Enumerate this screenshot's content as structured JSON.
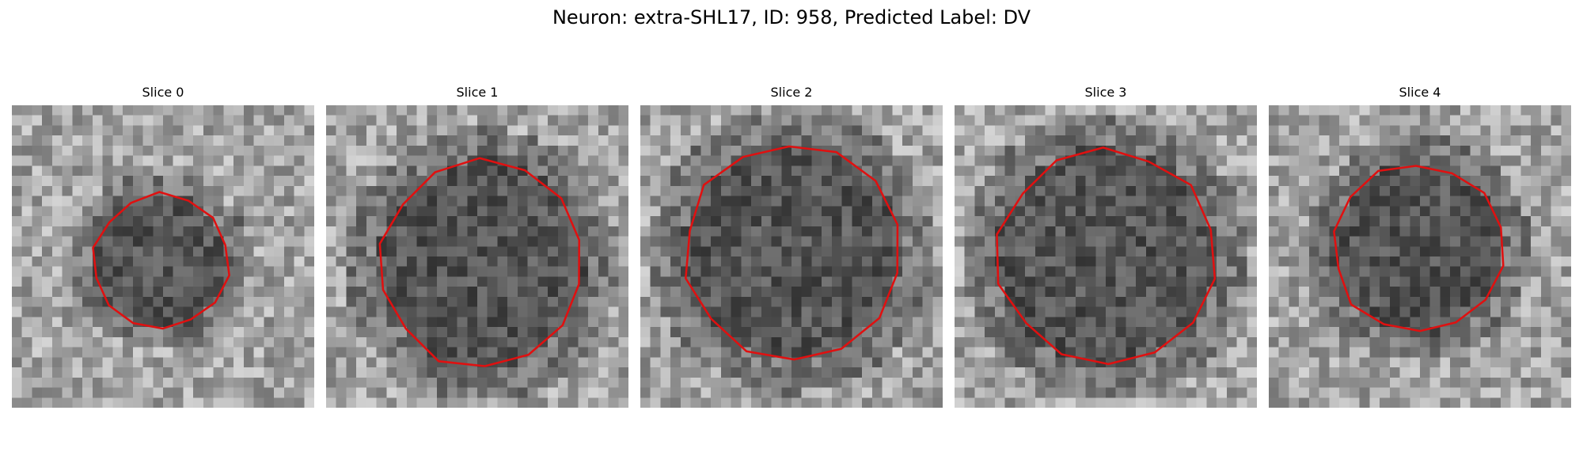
{
  "figure": {
    "title": "Neuron: extra-SHL17, ID: 958, Predicted Label: DV"
  },
  "colors": {
    "outline": "#e01010",
    "background": "#ffffff"
  },
  "slices": [
    {
      "title": "Slice 0",
      "outline_scale": 0.52,
      "seed": 11
    },
    {
      "title": "Slice 1",
      "outline_scale": 0.69,
      "seed": 23
    },
    {
      "title": "Slice 2",
      "outline_scale": 0.73,
      "seed": 37
    },
    {
      "title": "Slice 3",
      "outline_scale": 0.72,
      "seed": 41
    },
    {
      "title": "Slice 4",
      "outline_scale": 0.57,
      "seed": 59
    }
  ]
}
